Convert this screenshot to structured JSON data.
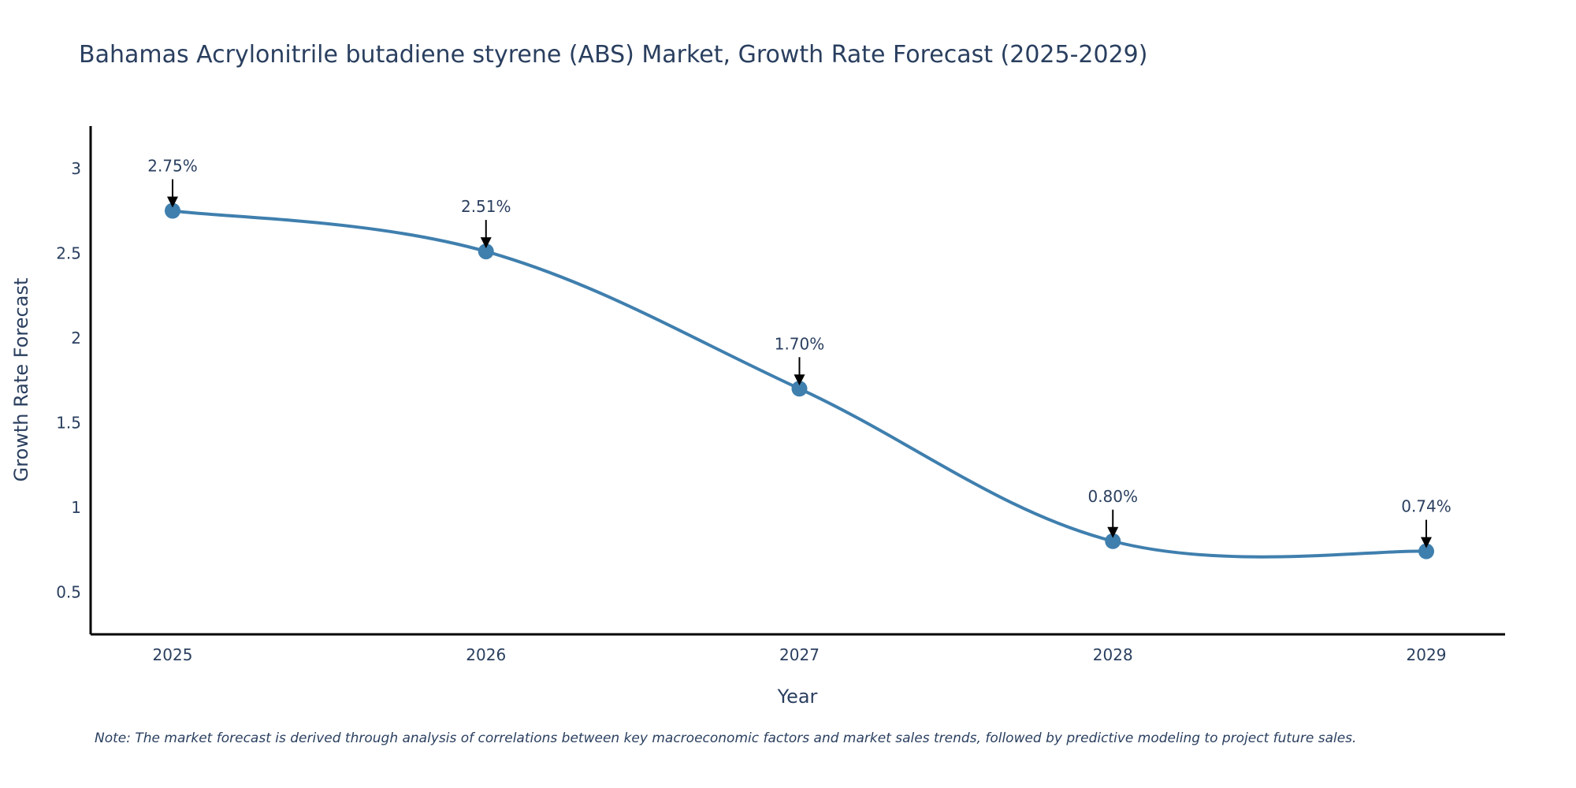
{
  "chart_data": {
    "type": "line",
    "title": "Bahamas Acrylonitrile butadiene styrene (ABS) Market, Growth Rate Forecast (2025-2029)",
    "xlabel": "Year",
    "ylabel": "Growth Rate Forecast",
    "categories": [
      "2025",
      "2026",
      "2027",
      "2028",
      "2029"
    ],
    "values": [
      2.75,
      2.51,
      1.7,
      0.8,
      0.74
    ],
    "data_labels": [
      "2.75%",
      "2.51%",
      "1.70%",
      "0.80%",
      "0.74%"
    ],
    "ylim": [
      0.25,
      3.25
    ],
    "yticks": [
      0.5,
      1,
      1.5,
      2,
      2.5,
      3
    ],
    "ytick_labels": [
      "0.5",
      "1",
      "1.5",
      "2",
      "2.5",
      "3"
    ],
    "grid": false,
    "line_color": "#3f7fae",
    "marker_color": "#3f7fae",
    "note": "Note: The market forecast is derived through analysis of correlations between key macroeconomic factors and market sales trends, followed by predictive modeling to project future sales."
  }
}
